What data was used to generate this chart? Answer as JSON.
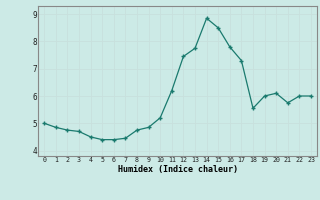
{
  "x": [
    0,
    1,
    2,
    3,
    4,
    5,
    6,
    7,
    8,
    9,
    10,
    11,
    12,
    13,
    14,
    15,
    16,
    17,
    18,
    19,
    20,
    21,
    22,
    23
  ],
  "y": [
    5.0,
    4.85,
    4.75,
    4.7,
    4.5,
    4.4,
    4.4,
    4.45,
    4.75,
    4.85,
    5.2,
    6.2,
    7.45,
    7.75,
    8.85,
    8.5,
    7.8,
    7.3,
    5.55,
    6.0,
    6.1,
    5.75,
    6.0,
    6.0
  ],
  "xlabel": "Humidex (Indice chaleur)",
  "ylim": [
    3.8,
    9.3
  ],
  "xlim": [
    -0.5,
    23.5
  ],
  "yticks": [
    4,
    5,
    6,
    7,
    8,
    9
  ],
  "xticks": [
    0,
    1,
    2,
    3,
    4,
    5,
    6,
    7,
    8,
    9,
    10,
    11,
    12,
    13,
    14,
    15,
    16,
    17,
    18,
    19,
    20,
    21,
    22,
    23
  ],
  "xtick_labels": [
    "0",
    "1",
    "2",
    "3",
    "4",
    "5",
    "6",
    "7",
    "8",
    "9",
    "10",
    "11",
    "12",
    "13",
    "14",
    "15",
    "16",
    "17",
    "18",
    "19",
    "20",
    "21",
    "22",
    "23"
  ],
  "line_color": "#1a7a6e",
  "marker_color": "#1a7a6e",
  "grid_color": "#c8e0dd",
  "axis_bg": "#cceae6",
  "fig_bg": "#cceae6"
}
